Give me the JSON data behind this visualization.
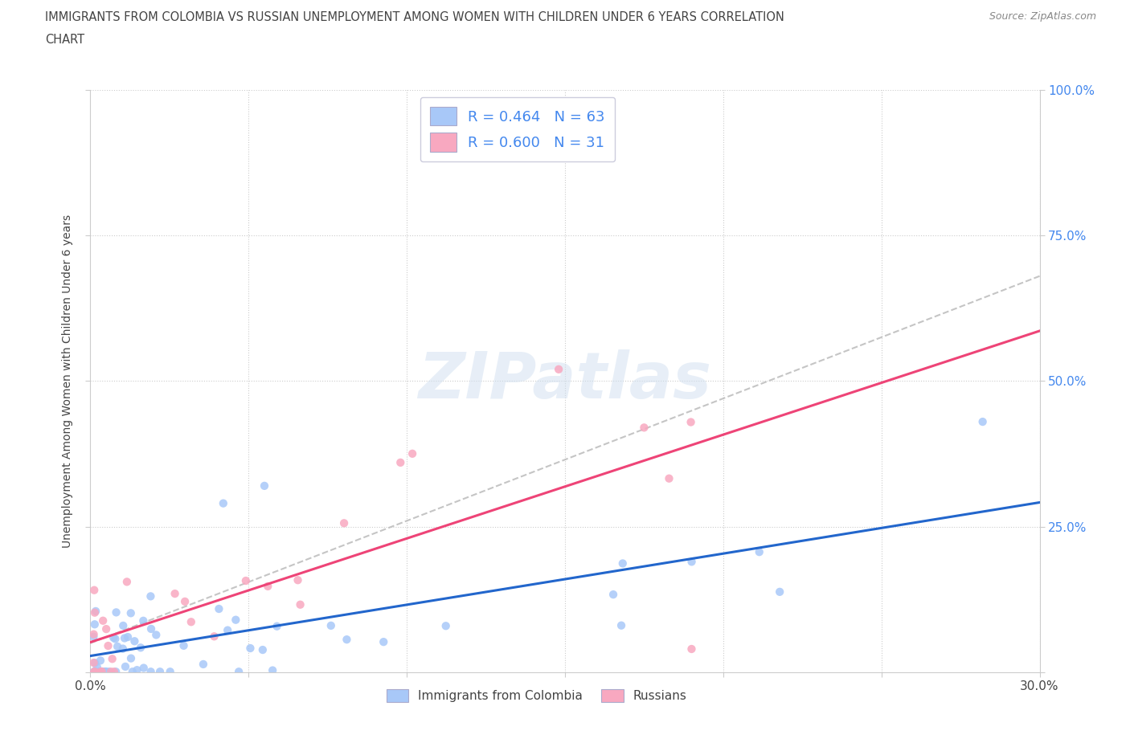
{
  "title_line1": "IMMIGRANTS FROM COLOMBIA VS RUSSIAN UNEMPLOYMENT AMONG WOMEN WITH CHILDREN UNDER 6 YEARS CORRELATION",
  "title_line2": "CHART",
  "source": "Source: ZipAtlas.com",
  "ylabel": "Unemployment Among Women with Children Under 6 years",
  "xlim": [
    0.0,
    0.3
  ],
  "ylim": [
    0.0,
    1.0
  ],
  "colombia_R": 0.464,
  "colombia_N": 63,
  "russian_R": 0.6,
  "russian_N": 31,
  "colombia_color": "#a8c8f8",
  "russian_color": "#f8a8c0",
  "colombia_line_color": "#2266cc",
  "russian_line_color": "#ee4477",
  "diagonal_color": "#bbbbbb",
  "background_color": "#ffffff",
  "grid_color": "#cccccc",
  "watermark_color": "#d0dff0",
  "title_color": "#444444",
  "tick_label_color": "#4488ee",
  "legend_label_color": "#4488ee",
  "bottom_legend_color": "#444444"
}
